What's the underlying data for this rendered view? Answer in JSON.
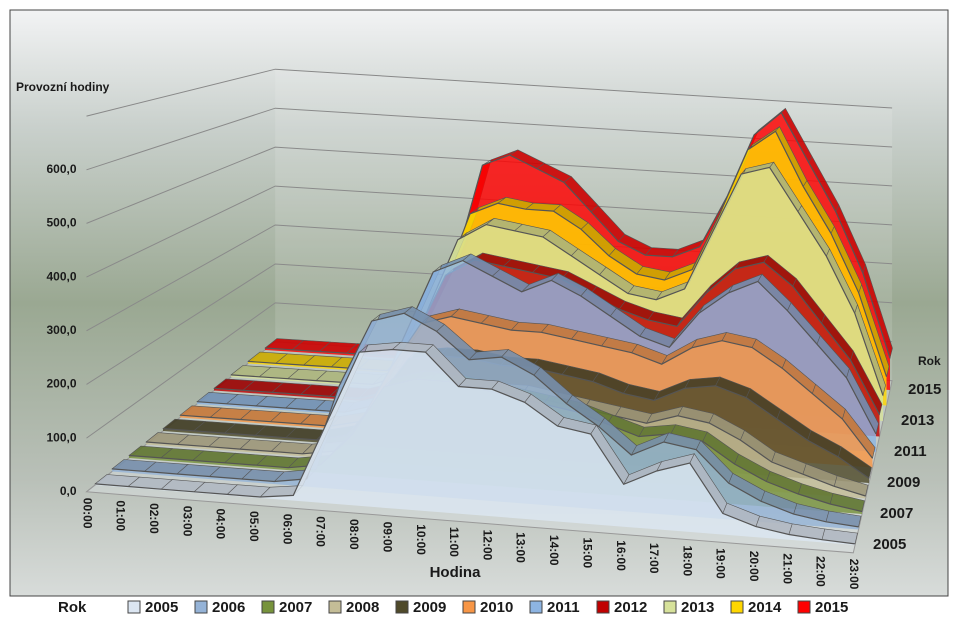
{
  "chart_data": {
    "type": "area3d",
    "y_label": "Provozní hodiny",
    "x_label": "Hodina",
    "z_label": "Rok",
    "legend_title": "Rok",
    "categories": [
      "00:00",
      "01:00",
      "02:00",
      "03:00",
      "04:00",
      "05:00",
      "06:00",
      "07:00",
      "08:00",
      "09:00",
      "10:00",
      "11:00",
      "12:00",
      "13:00",
      "14:00",
      "15:00",
      "16:00",
      "17:00",
      "18:00",
      "19:00",
      "20:00",
      "21:00",
      "22:00",
      "23:00"
    ],
    "ylim": [
      0,
      700
    ],
    "yticks": [
      {
        "value": 0,
        "label": "0,0"
      },
      {
        "value": 100,
        "label": "100,0"
      },
      {
        "value": 200,
        "label": "200,0"
      },
      {
        "value": 300,
        "label": "300,0"
      },
      {
        "value": 400,
        "label": "400,0"
      },
      {
        "value": 500,
        "label": "500,0"
      },
      {
        "value": 600,
        "label": "600,0"
      }
    ],
    "legend": "bottom",
    "series": [
      {
        "name": "2005",
        "color": "#dce6f2",
        "values": [
          2,
          2,
          2,
          2,
          2,
          2,
          10,
          150,
          290,
          300,
          300,
          240,
          240,
          220,
          180,
          170,
          80,
          110,
          130,
          40,
          20,
          10,
          5,
          2
        ]
      },
      {
        "name": "2006",
        "color": "#95b3d7",
        "values": [
          5,
          5,
          5,
          5,
          5,
          5,
          15,
          200,
          330,
          350,
          320,
          270,
          280,
          250,
          200,
          160,
          110,
          140,
          130,
          70,
          40,
          20,
          10,
          5
        ]
      },
      {
        "name": "2007",
        "color": "#77933c",
        "values": [
          5,
          5,
          5,
          5,
          5,
          5,
          15,
          80,
          180,
          200,
          200,
          190,
          180,
          170,
          160,
          140,
          120,
          130,
          120,
          80,
          50,
          30,
          15,
          5
        ]
      },
      {
        "name": "2008",
        "color": "#c4bd97",
        "values": [
          5,
          5,
          5,
          5,
          5,
          5,
          15,
          60,
          150,
          170,
          170,
          160,
          160,
          150,
          140,
          130,
          120,
          140,
          130,
          100,
          60,
          40,
          20,
          5
        ]
      },
      {
        "name": "2009",
        "color": "#4f4a2a",
        "values": [
          5,
          5,
          5,
          5,
          5,
          5,
          20,
          100,
          190,
          200,
          200,
          190,
          190,
          180,
          170,
          150,
          140,
          170,
          180,
          160,
          120,
          80,
          50,
          10
        ]
      },
      {
        "name": "2010",
        "color": "#f79646",
        "values": [
          5,
          5,
          5,
          5,
          5,
          5,
          20,
          140,
          240,
          260,
          250,
          240,
          240,
          230,
          220,
          210,
          190,
          230,
          250,
          240,
          200,
          150,
          100,
          20
        ]
      },
      {
        "name": "2011",
        "color": "#8db4e2",
        "values": [
          5,
          5,
          5,
          5,
          5,
          5,
          25,
          180,
          330,
          360,
          330,
          300,
          330,
          300,
          260,
          220,
          200,
          280,
          330,
          360,
          300,
          230,
          160,
          40
        ]
      },
      {
        "name": "2012",
        "color": "#c00000",
        "values": [
          5,
          5,
          5,
          5,
          5,
          5,
          25,
          160,
          300,
          340,
          330,
          320,
          310,
          280,
          250,
          230,
          220,
          300,
          360,
          380,
          330,
          250,
          170,
          50
        ]
      },
      {
        "name": "2013",
        "color": "#d7e29b",
        "values": [
          5,
          5,
          5,
          5,
          5,
          5,
          30,
          200,
          360,
          400,
          390,
          380,
          340,
          300,
          260,
          250,
          280,
          420,
          560,
          580,
          480,
          380,
          250,
          60
        ]
      },
      {
        "name": "2014",
        "color": "#ffd700",
        "values": [
          5,
          5,
          5,
          5,
          5,
          5,
          30,
          220,
          400,
          430,
          420,
          420,
          380,
          320,
          280,
          270,
          300,
          440,
          600,
          650,
          520,
          410,
          270,
          70
        ]
      },
      {
        "name": "2015",
        "color": "#ff0000",
        "values": [
          5,
          5,
          5,
          5,
          5,
          5,
          35,
          250,
          500,
          530,
          500,
          470,
          400,
          330,
          300,
          300,
          330,
          460,
          620,
          680,
          560,
          440,
          290,
          80
        ]
      }
    ]
  }
}
